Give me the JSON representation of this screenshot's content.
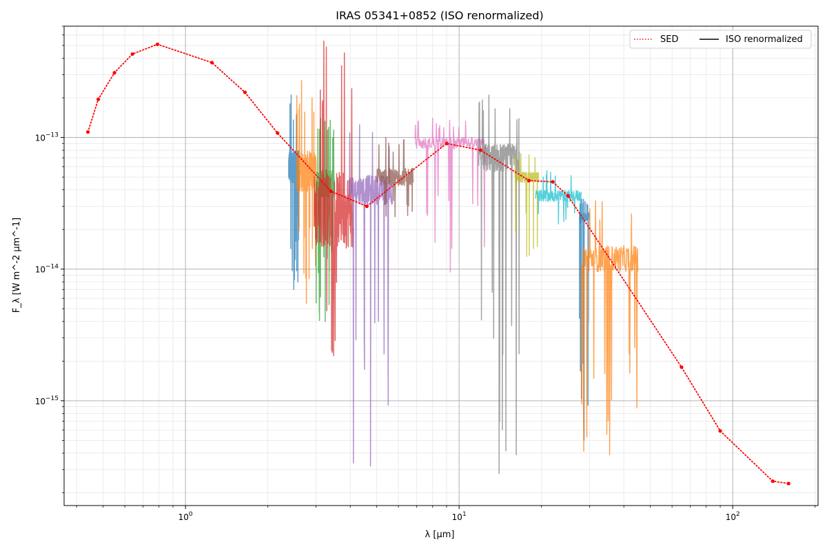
{
  "chart_data": {
    "type": "line",
    "title": "IRAS 05341+0852 (ISO renormalized)",
    "xlabel": "λ [μm]",
    "ylabel": "F_λ [W m^-2 μm^-1]",
    "x_scale": "log",
    "y_scale": "log",
    "xlim": [
      0.36,
      205
    ],
    "ylim": [
      1.6e-16,
      7e-13
    ],
    "x_ticks": [
      {
        "value": 1,
        "base": "10",
        "exp": "0"
      },
      {
        "value": 10,
        "base": "10",
        "exp": "1"
      },
      {
        "value": 100,
        "base": "10",
        "exp": "2"
      }
    ],
    "y_ticks": [
      {
        "value": 1e-15,
        "base": "10",
        "exp": "−15"
      },
      {
        "value": 1e-14,
        "base": "10",
        "exp": "−14"
      },
      {
        "value": 1e-13,
        "base": "10",
        "exp": "−13"
      }
    ],
    "grid": true,
    "legend_position": "top-right",
    "legend": [
      {
        "label": "SED",
        "style": "dotted",
        "color": "#ff0000"
      },
      {
        "label": "ISO renormalized",
        "style": "solid",
        "color": "#000000"
      }
    ],
    "sed": {
      "name": "SED",
      "color": "#ff0000",
      "x": [
        0.44,
        0.48,
        0.55,
        0.64,
        0.79,
        1.25,
        1.65,
        2.17,
        3.4,
        4.6,
        9.0,
        12.0,
        18.0,
        22.0,
        25.0,
        65.0,
        90.0,
        140.0,
        160.0
      ],
      "y": [
        1.1e-13,
        1.95e-13,
        3.1e-13,
        4.3e-13,
        5.1e-13,
        3.7e-13,
        2.2e-13,
        1.08e-13,
        3.9e-14,
        3e-14,
        9e-14,
        8e-14,
        4.7e-14,
        4.6e-14,
        3.6e-14,
        1.8e-15,
        5.9e-16,
        2.45e-16,
        2.35e-16
      ]
    },
    "iso_segments": [
      {
        "color": "#1f77b4",
        "x_range": [
          2.38,
          2.6
        ],
        "y_level": 6e-14,
        "y_min": 7e-15,
        "y_max": 2.1e-13
      },
      {
        "color": "#ff7f0e",
        "x_range": [
          2.55,
          3.0
        ],
        "y_level": 5.5e-14,
        "y_min": 5.5e-15,
        "y_max": 2.7e-13
      },
      {
        "color": "#2ca02c",
        "x_range": [
          3.0,
          3.5
        ],
        "y_level": 4.5e-14,
        "y_min": 4e-15,
        "y_max": 1.4e-13
      },
      {
        "color": "#d62728",
        "x_range": [
          2.95,
          4.1
        ],
        "y_level": 2.8e-14,
        "y_min": 2.2e-15,
        "y_max": 5.4e-13
      },
      {
        "color": "#9467bd",
        "x_range": [
          3.95,
          5.7
        ],
        "y_level": 4e-14,
        "y_min": 3.2e-16,
        "y_max": 1.25e-13
      },
      {
        "color": "#8c564b",
        "x_range": [
          5.0,
          6.8
        ],
        "y_level": 5e-14,
        "y_min": 2.5e-14,
        "y_max": 1e-13
      },
      {
        "color": "#e377c2",
        "x_range": [
          6.9,
          12.5
        ],
        "y_level": 9e-14,
        "y_min": 9.5e-15,
        "y_max": 1.4e-13
      },
      {
        "color": "#7f7f7f",
        "x_range": [
          11.8,
          16.6
        ],
        "y_level": 7e-14,
        "y_min": 2.8e-16,
        "y_max": 2.1e-13
      },
      {
        "color": "#bcbd22",
        "x_range": [
          16.0,
          19.5
        ],
        "y_level": 5e-14,
        "y_min": 1.25e-14,
        "y_max": 7.5e-14
      },
      {
        "color": "#17becf",
        "x_range": [
          19.0,
          28.0
        ],
        "y_level": 3.6e-14,
        "y_min": 2.2e-14,
        "y_max": 5.6e-14
      },
      {
        "color": "#1f77b4",
        "x_range": [
          27.5,
          29.8
        ],
        "y_level": 2.5e-14,
        "y_min": 5e-16,
        "y_max": 3.4e-14
      },
      {
        "color": "#ff7f0e",
        "x_range": [
          28.0,
          45.0
        ],
        "y_level": 1.2e-14,
        "y_min": 3.9e-16,
        "y_max": 3.3e-14
      }
    ]
  }
}
